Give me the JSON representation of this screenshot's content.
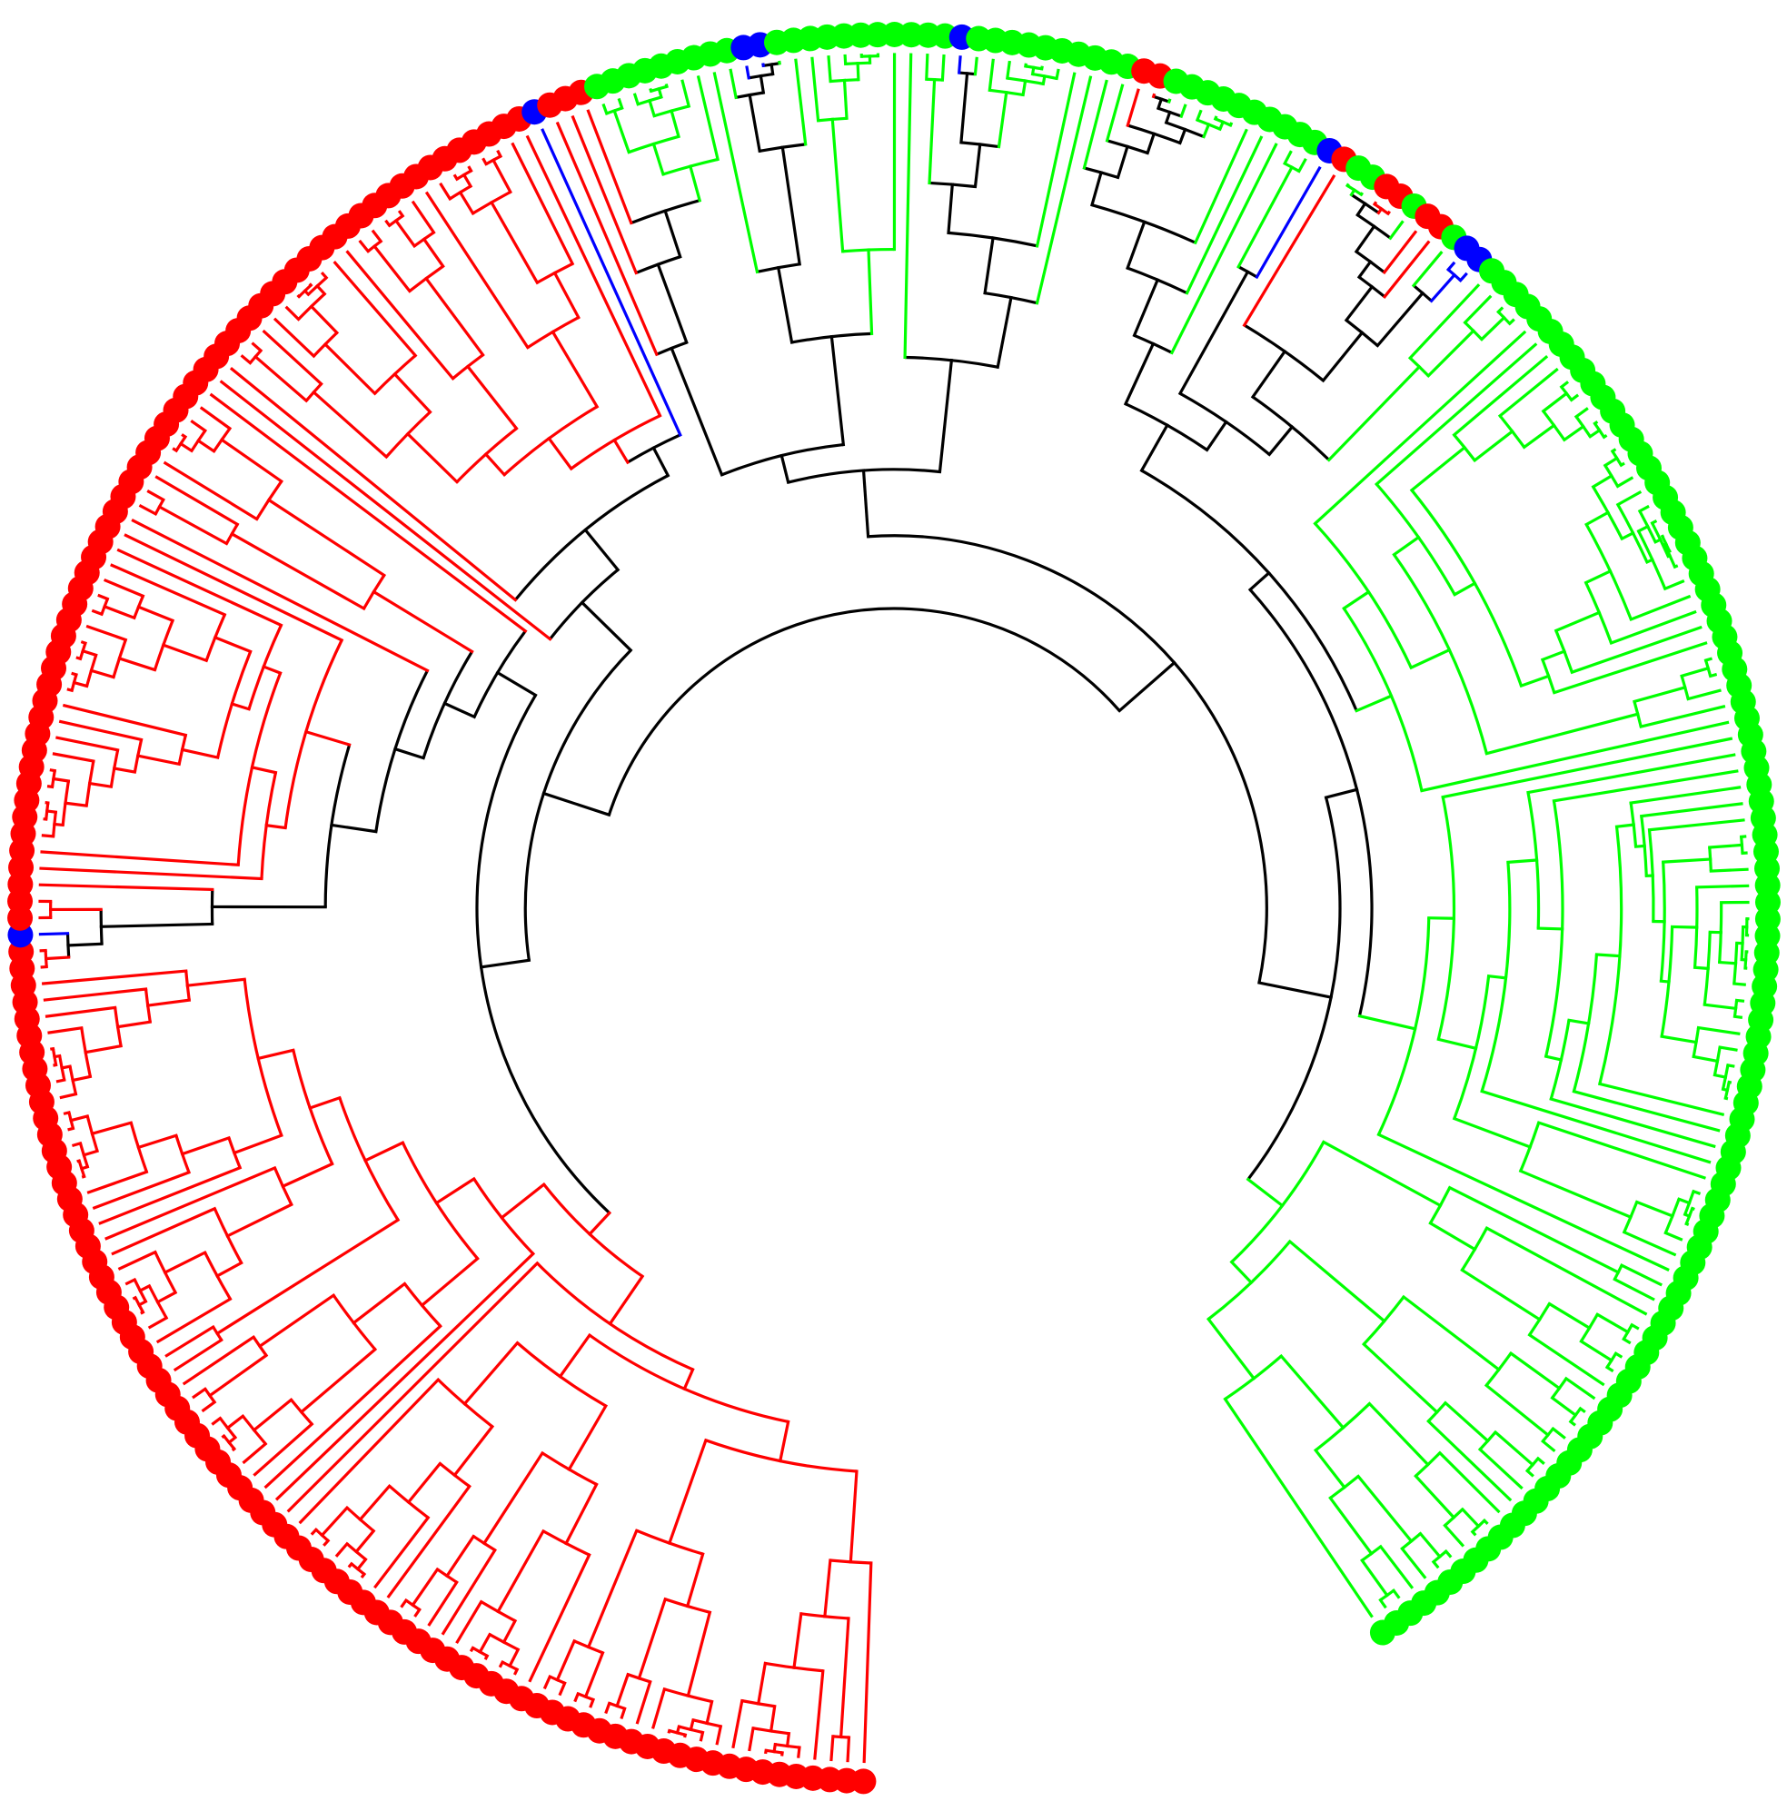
{
  "tree": {
    "layout": "circular",
    "open_sector": "top",
    "clade_colors": {
      "red": "#ff0000",
      "green": "#00ff00",
      "blue": "#0000ff",
      "black": "#000000"
    },
    "clades": [
      {
        "name": "red",
        "leaf_count": 140,
        "subclade_sizes": [
          40,
          36,
          38,
          26
        ]
      },
      {
        "name": "mixed",
        "leaf_count": 34
      },
      {
        "name": "green",
        "leaf_count": 120,
        "subclade_sizes": [
          30,
          28,
          34,
          28
        ]
      }
    ],
    "leaf_sequence": [
      {
        "color": "red",
        "n": 78
      },
      {
        "color": "blue",
        "n": 1
      },
      {
        "color": "red",
        "n": 60
      },
      {
        "color": "blue",
        "n": 1
      },
      {
        "color": "red",
        "n": 3
      },
      {
        "color": "green",
        "n": 9
      },
      {
        "color": "blue",
        "n": 2
      },
      {
        "color": "green",
        "n": 11
      },
      {
        "color": "blue",
        "n": 1
      },
      {
        "color": "green",
        "n": 10
      },
      {
        "color": "red",
        "n": 2
      },
      {
        "color": "green",
        "n": 10
      },
      {
        "color": "blue",
        "n": 1
      },
      {
        "color": "red",
        "n": 1
      },
      {
        "color": "green",
        "n": 2
      },
      {
        "color": "red",
        "n": 2
      },
      {
        "color": "green",
        "n": 1
      },
      {
        "color": "red",
        "n": 2
      },
      {
        "color": "green",
        "n": 1
      },
      {
        "color": "blue",
        "n": 2
      },
      {
        "color": "green",
        "n": 95
      },
      {
        "color": "blue",
        "n": 1
      },
      {
        "color": "green",
        "n": 9
      },
      {
        "color": "blue",
        "n": 1
      },
      {
        "color": "green",
        "n": 26
      }
    ]
  }
}
